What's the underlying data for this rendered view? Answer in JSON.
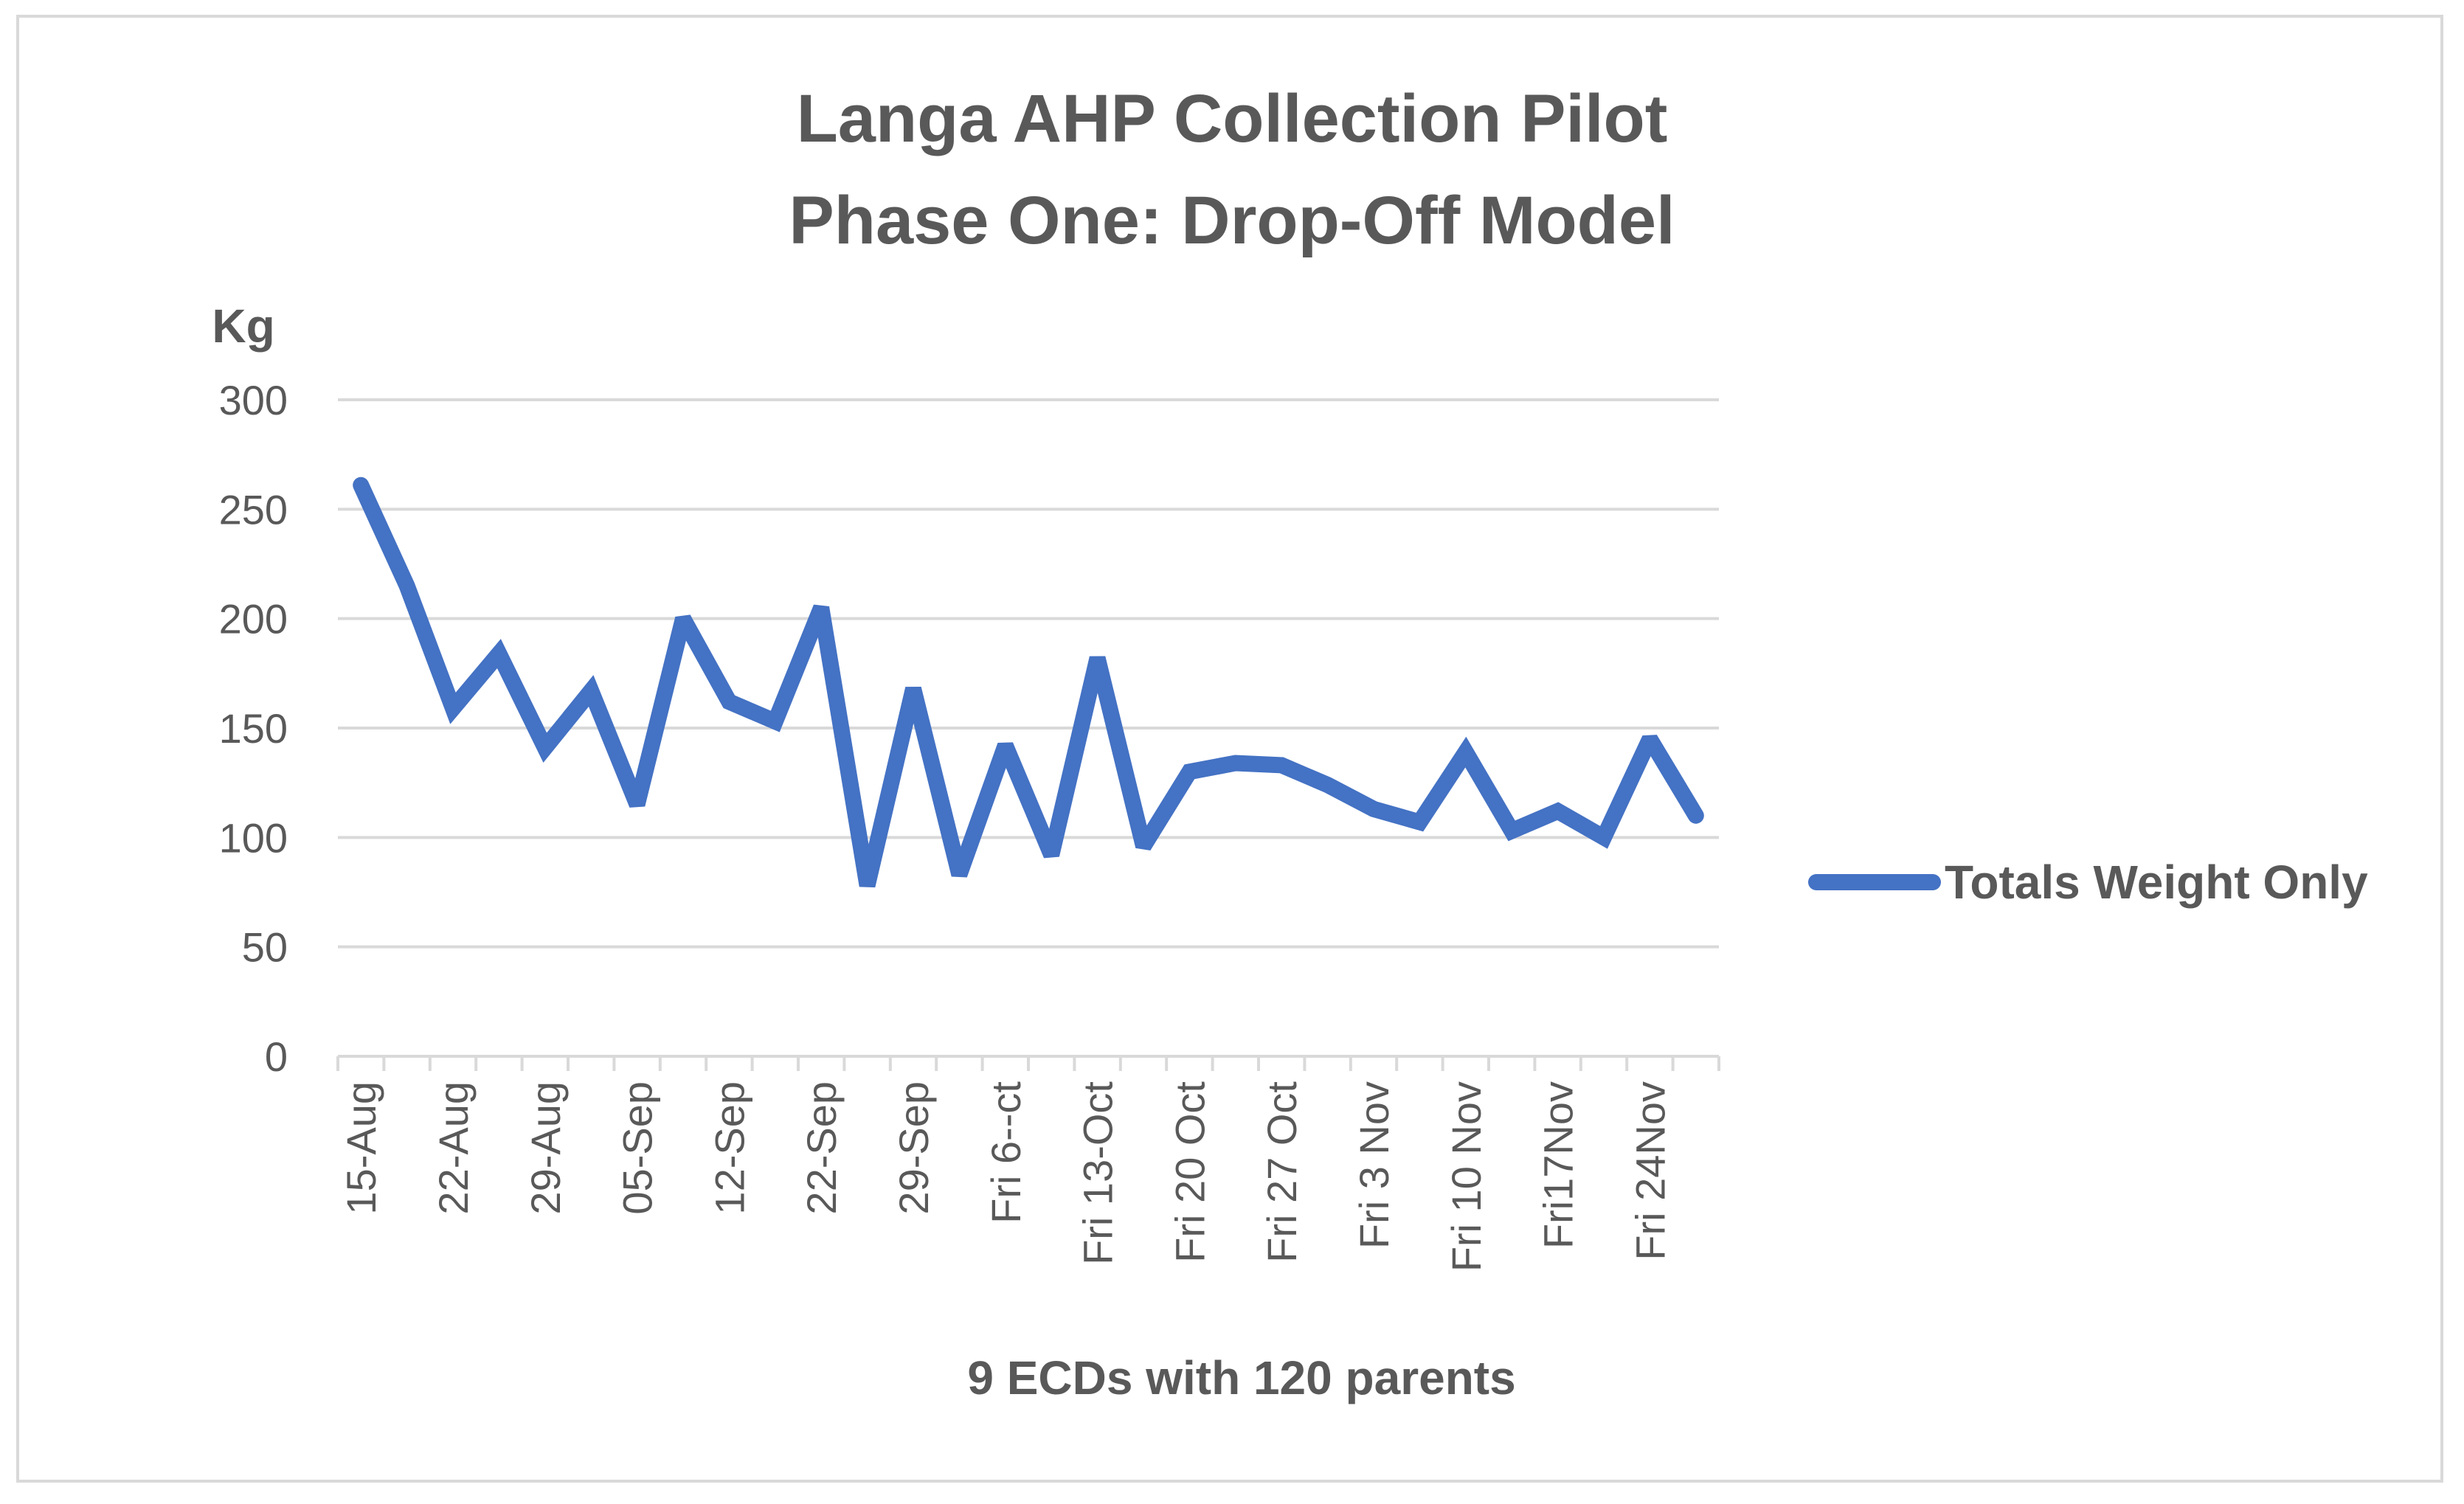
{
  "chart_data": {
    "type": "line",
    "title": [
      "Langa AHP Collection Pilot",
      "Phase One: Drop-Off Model"
    ],
    "ylabel": "Kg",
    "xlabel": "9 ECDs with 120 parents",
    "ylim": [
      0,
      300
    ],
    "yticks": [
      0,
      50,
      100,
      150,
      200,
      250,
      300
    ],
    "grid": true,
    "legend_position": "right",
    "x_tick_labels": [
      "15-Aug",
      "22-Aug",
      "29-Aug",
      "05-Sep",
      "12-Sep",
      "22-Sep",
      "29-Sep",
      "Fri 6--ct",
      "Fri 13-Oct",
      "Fri 20 Oct",
      "Fri 27 Oct",
      "Fri 3 Nov",
      "Fri 10 Nov",
      "Fri17Nov",
      "Fri 24Nov"
    ],
    "series": [
      {
        "name": "Totals Weight Only",
        "color": "#4472c4",
        "values": [
          261,
          215,
          159,
          184,
          141,
          167,
          115,
          200,
          162,
          153,
          205,
          78,
          168,
          83,
          142,
          92,
          182,
          96,
          130,
          134,
          133,
          124,
          113,
          107,
          139,
          103,
          112,
          100,
          145,
          110
        ]
      }
    ]
  }
}
